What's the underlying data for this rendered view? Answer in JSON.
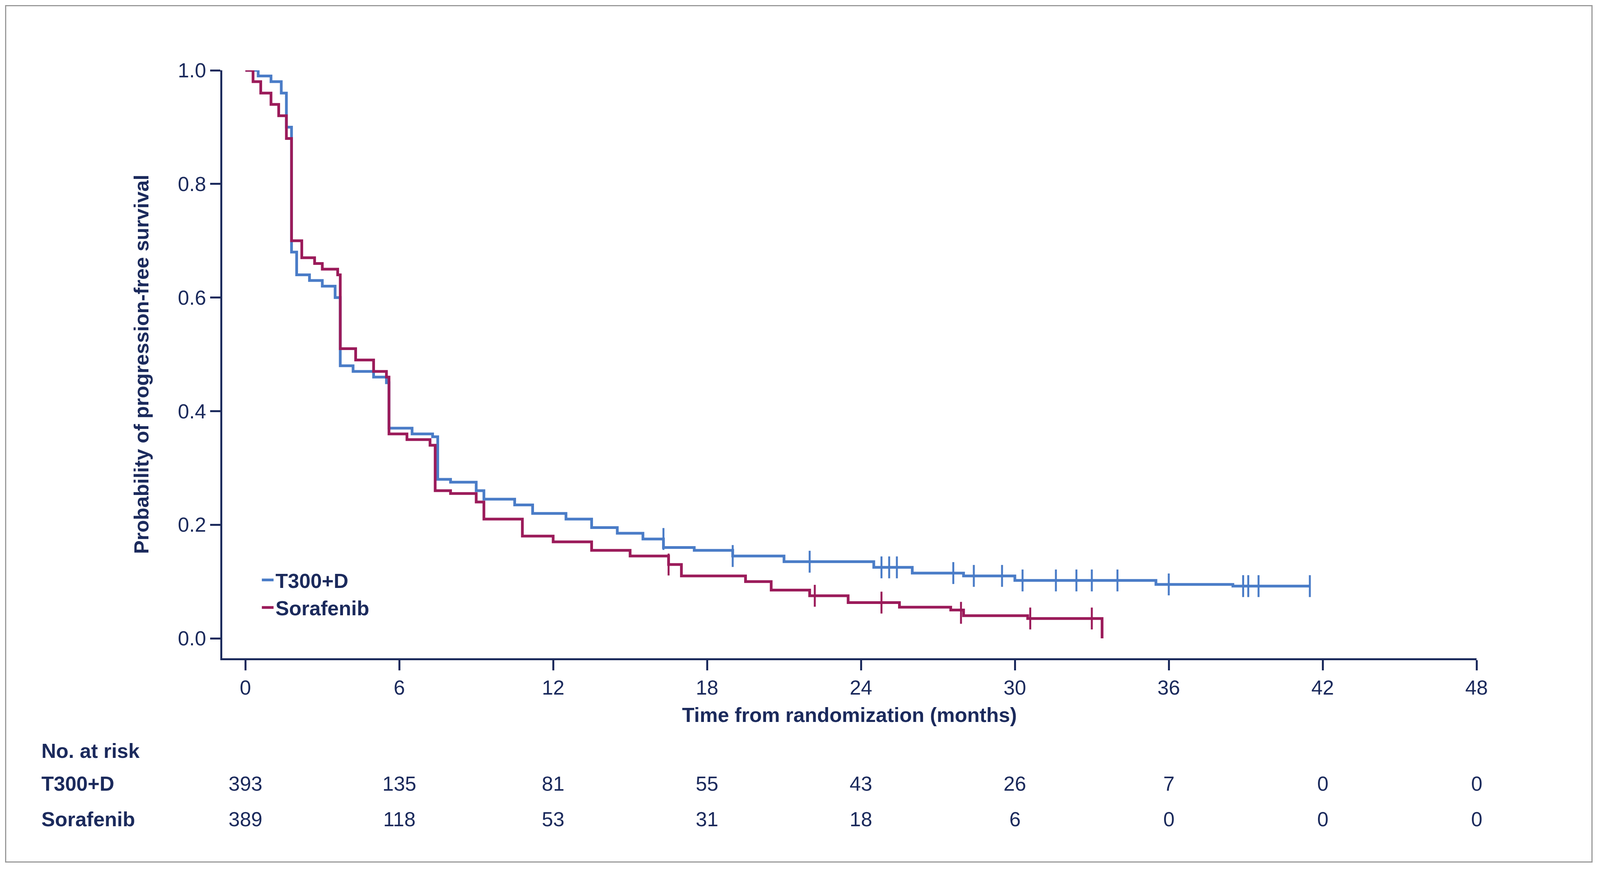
{
  "chart_data": {
    "type": "line",
    "x_label": "Time from randomization (months)",
    "y_label": "Probability of progression-free survival",
    "xlim": [
      -0.9,
      48
    ],
    "xticks": [
      0,
      6,
      12,
      18,
      24,
      30,
      36,
      42,
      48
    ],
    "ylim": [
      -0.035,
      1.0
    ],
    "yticks": [
      {
        "value": 0,
        "label": "0.0"
      },
      0.2,
      0.4,
      0.6,
      0.8,
      {
        "value": 1,
        "label": "1.0"
      }
    ],
    "grid": false,
    "legend": "lower left",
    "line_style": "step",
    "series": [
      {
        "name": "T300+D",
        "color": "#4a7cc7",
        "x": [
          0,
          0.5,
          1.0,
          1.4,
          1.6,
          1.8,
          2.0,
          2.5,
          3.0,
          3.5,
          3.7,
          4.2,
          5.0,
          5.5,
          5.6,
          6.5,
          7.3,
          7.5,
          8.0,
          9.0,
          9.3,
          10.5,
          11.2,
          12.5,
          13.5,
          14.5,
          15.5,
          16.3,
          17.5,
          19.0,
          21.0,
          24.5,
          26.0,
          28.0,
          30.0,
          35.5,
          38.5,
          41.5
        ],
        "values": [
          1.0,
          0.99,
          0.98,
          0.96,
          0.9,
          0.68,
          0.64,
          0.63,
          0.62,
          0.6,
          0.48,
          0.47,
          0.46,
          0.45,
          0.37,
          0.36,
          0.355,
          0.28,
          0.275,
          0.26,
          0.245,
          0.235,
          0.22,
          0.21,
          0.195,
          0.185,
          0.175,
          0.16,
          0.155,
          0.145,
          0.135,
          0.125,
          0.115,
          0.11,
          0.102,
          0.095,
          0.092,
          0.092
        ],
        "censored_x": [
          16.3,
          19.0,
          22.0,
          24.8,
          25.1,
          25.4,
          27.6,
          28.4,
          29.5,
          30.3,
          31.6,
          32.4,
          33.0,
          34.0,
          36.0,
          38.9,
          39.1,
          39.5,
          41.5
        ],
        "censored_values": [
          0.175,
          0.145,
          0.135,
          0.125,
          0.125,
          0.125,
          0.115,
          0.11,
          0.11,
          0.102,
          0.102,
          0.102,
          0.102,
          0.102,
          0.095,
          0.092,
          0.092,
          0.092,
          0.092
        ]
      },
      {
        "name": "Sorafenib",
        "color": "#9b1b5a",
        "x": [
          0,
          0.3,
          0.6,
          1.0,
          1.3,
          1.6,
          1.8,
          2.2,
          2.7,
          3.0,
          3.6,
          3.7,
          4.3,
          5.0,
          5.5,
          5.6,
          6.3,
          7.2,
          7.4,
          8.0,
          9.0,
          9.3,
          10.8,
          12.0,
          13.5,
          15.0,
          16.5,
          17.0,
          19.5,
          20.5,
          22.0,
          23.5,
          25.5,
          27.5,
          28.0,
          30.5,
          33.2,
          33.4
        ],
        "values": [
          1.0,
          0.98,
          0.96,
          0.94,
          0.92,
          0.88,
          0.7,
          0.67,
          0.66,
          0.65,
          0.64,
          0.51,
          0.49,
          0.47,
          0.46,
          0.36,
          0.35,
          0.34,
          0.26,
          0.255,
          0.24,
          0.21,
          0.18,
          0.17,
          0.155,
          0.145,
          0.13,
          0.11,
          0.1,
          0.085,
          0.075,
          0.063,
          0.055,
          0.05,
          0.04,
          0.035,
          0.035,
          0.0
        ],
        "censored_x": [
          16.5,
          22.2,
          24.8,
          27.9,
          30.6,
          33.0
        ],
        "censored_values": [
          0.13,
          0.075,
          0.063,
          0.045,
          0.035,
          0.035
        ]
      }
    ],
    "risk_table": {
      "title": "No. at risk",
      "rows": [
        {
          "name": "T300+D",
          "values": [
            393,
            135,
            81,
            55,
            43,
            26,
            7,
            0,
            0
          ]
        },
        {
          "name": "Sorafenib",
          "values": [
            389,
            118,
            53,
            31,
            18,
            6,
            0,
            0,
            0
          ]
        }
      ]
    }
  }
}
